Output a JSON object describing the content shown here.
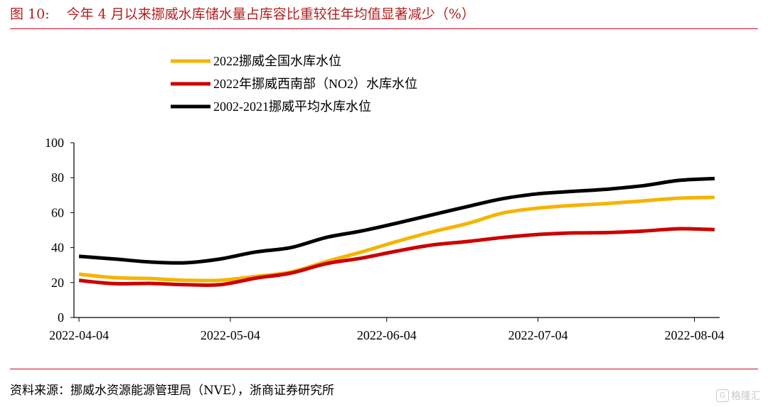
{
  "figure": {
    "number": "图 10:",
    "title": "今年 4 月以来挪威水库储水量占库容比重较往年均值显著减少（%）"
  },
  "source": "资料来源：挪威水资源能源管理局（NVE），浙商证券研究所",
  "watermark": "格隆汇",
  "colors": {
    "accent_red": "#c8102e",
    "title_red": "#b31e1e",
    "series_2022_national": "#f5b400",
    "series_2022_no2": "#cc0000",
    "series_avg": "#000000"
  },
  "chart_data": {
    "type": "line",
    "x_ticks": [
      "2022-04-04",
      "2022-05-04",
      "2022-06-04",
      "2022-07-04",
      "2022-08-04"
    ],
    "ylim": [
      0,
      100
    ],
    "yticks": [
      0,
      20,
      40,
      60,
      80,
      100
    ],
    "legend_position": "top-left",
    "grid": false,
    "dates": [
      "2022-04-04",
      "2022-04-11",
      "2022-04-18",
      "2022-04-25",
      "2022-05-02",
      "2022-05-09",
      "2022-05-16",
      "2022-05-23",
      "2022-05-30",
      "2022-06-06",
      "2022-06-13",
      "2022-06-20",
      "2022-06-27",
      "2022-07-04",
      "2022-07-11",
      "2022-07-18",
      "2022-07-25",
      "2022-08-01",
      "2022-08-08"
    ],
    "series": [
      {
        "name": "2022挪威全国水库水位",
        "color": "#f5b400",
        "values": [
          24.8,
          22.8,
          22.3,
          21.3,
          21.3,
          23.5,
          26.0,
          32.0,
          37.5,
          43.5,
          49.0,
          53.8,
          59.8,
          62.6,
          64.2,
          65.3,
          66.8,
          68.3,
          68.8
        ]
      },
      {
        "name": "2022年挪威西南部（NO2）水库水位",
        "color": "#cc0000",
        "values": [
          21.2,
          19.4,
          19.5,
          18.8,
          18.8,
          22.5,
          25.4,
          30.8,
          34.0,
          38.0,
          41.5,
          43.5,
          45.8,
          47.5,
          48.4,
          48.6,
          49.5,
          50.8,
          50.3
        ]
      },
      {
        "name": "2002-2021挪威平均水库水位",
        "color": "#000000",
        "values": [
          35.0,
          33.5,
          31.8,
          31.3,
          33.5,
          37.5,
          40.0,
          45.8,
          49.5,
          54.0,
          58.8,
          63.5,
          68.0,
          70.8,
          72.2,
          73.5,
          75.5,
          78.5,
          79.5
        ]
      }
    ]
  }
}
